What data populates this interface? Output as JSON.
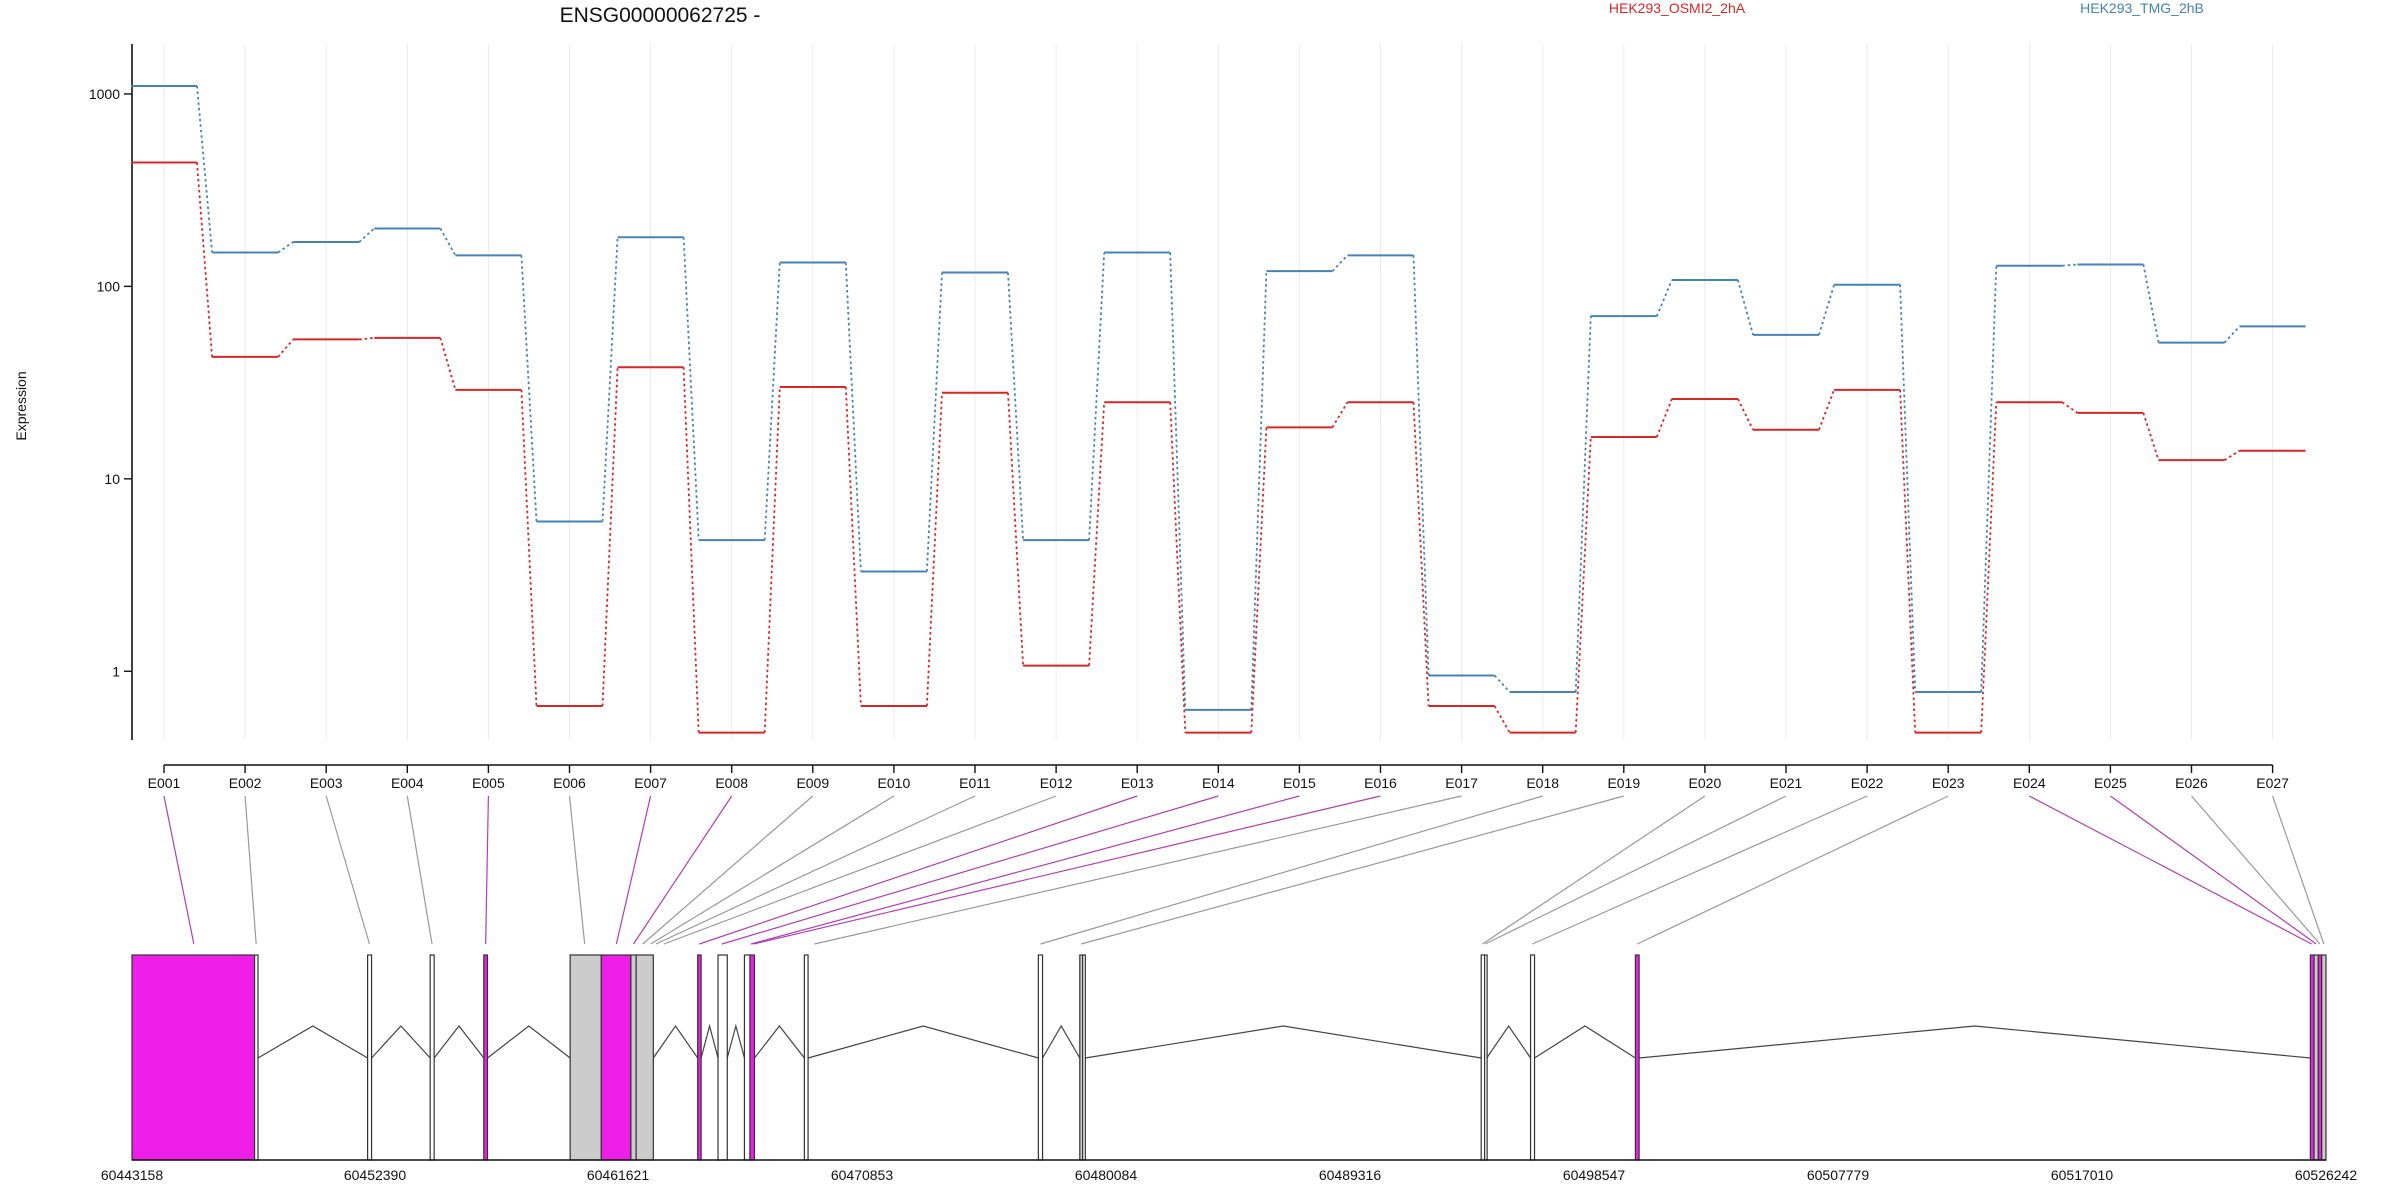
{
  "chart_data": {
    "type": "line",
    "title": "ENSG00000062725 -",
    "ylabel": "Expression",
    "xlabel": "",
    "yscale": "log",
    "ylim": [
      0.45,
      1300
    ],
    "yticks": [
      1,
      10,
      100,
      1000
    ],
    "ytick_labels": [
      "1",
      "10",
      "100",
      "1000"
    ],
    "grid": "vertical",
    "categories": [
      "E001",
      "E002",
      "E003",
      "E004",
      "E005",
      "E006",
      "E007",
      "E008",
      "E009",
      "E010",
      "E011",
      "E012",
      "E013",
      "E014",
      "E015",
      "E016",
      "E017",
      "E018",
      "E019",
      "E020",
      "E021",
      "E022",
      "E023",
      "E024",
      "E025",
      "E026",
      "E027"
    ],
    "series": [
      {
        "name": "HEK293_TMG_2hB",
        "color": "#4682b4",
        "values": [
          1100,
          150,
          170,
          200,
          145,
          6,
          180,
          4.8,
          133,
          3.3,
          118,
          4.8,
          150,
          0.63,
          120,
          145,
          0.95,
          0.78,
          70,
          108,
          56,
          102,
          0.78,
          128,
          130,
          51,
          62
        ]
      },
      {
        "name": "HEK293_OSMI2_2hA",
        "color": "#d62728",
        "values": [
          440,
          43,
          53,
          54,
          29,
          0.66,
          38,
          0.48,
          30,
          0.66,
          28,
          1.07,
          25,
          0.48,
          18.5,
          25,
          0.66,
          0.48,
          16.5,
          26,
          18,
          29,
          0.48,
          25,
          22,
          12.5,
          14
        ]
      }
    ]
  },
  "gene_model": {
    "exon_color": "#ee1ee8",
    "highlight_exons": [
      "E001",
      "E005",
      "E007",
      "E008",
      "E013",
      "E014",
      "E015",
      "E016",
      "E024",
      "E025"
    ],
    "coordinates": [
      "60443158",
      "60452390",
      "60461621",
      "60470853",
      "60480084",
      "60489316",
      "60498547",
      "60507779",
      "60517010",
      "60526242"
    ],
    "range": [
      60443158,
      60526242
    ]
  }
}
